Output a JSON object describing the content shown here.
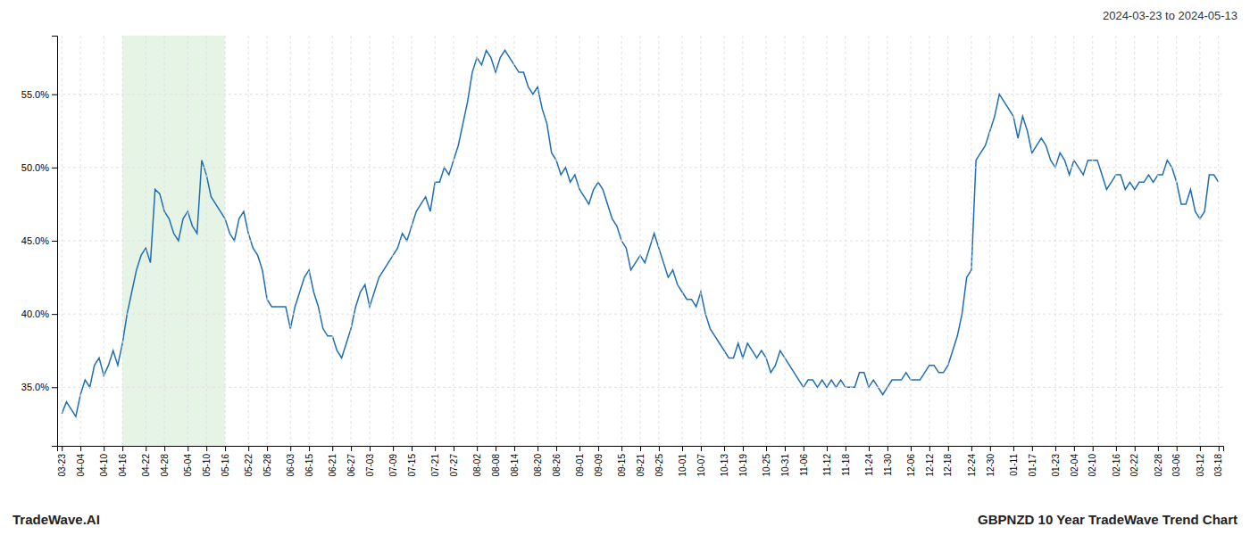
{
  "chart_data": {
    "type": "line",
    "title": "GBPNZD 10 Year TradeWave Trend Chart",
    "subtitle": "2024-03-23 to 2024-05-13",
    "annotations": [
      "TradeWave.AI"
    ],
    "color": "#1f6eb5",
    "grid": true,
    "highlight": {
      "start": "04-16",
      "end": "05-16",
      "color": "#c8e6c8"
    },
    "ylim": [
      31.0,
      59.0
    ],
    "yticks": [
      {
        "value": 35.0,
        "label": "35.0%"
      },
      {
        "value": 40.0,
        "label": "40.0%"
      },
      {
        "value": 45.0,
        "label": "45.0%"
      },
      {
        "value": 50.0,
        "label": "50.0%"
      },
      {
        "value": 55.0,
        "label": "55.0%"
      }
    ],
    "categories": [
      "03-23",
      null,
      null,
      null,
      "04-04",
      null,
      null,
      null,
      null,
      "04-10",
      null,
      null,
      null,
      "04-16",
      null,
      null,
      null,
      null,
      "04-22",
      null,
      null,
      null,
      "04-28",
      null,
      null,
      null,
      null,
      "05-04",
      null,
      null,
      null,
      "05-10",
      null,
      null,
      null,
      "05-16",
      null,
      null,
      null,
      null,
      "05-22",
      null,
      null,
      null,
      "05-28",
      null,
      null,
      null,
      null,
      "06-03",
      null,
      null,
      null,
      "06-15",
      null,
      null,
      null,
      null,
      "06-21",
      null,
      null,
      null,
      "06-27",
      null,
      null,
      null,
      "07-03",
      null,
      null,
      null,
      null,
      "07-09",
      null,
      null,
      null,
      "07-15",
      null,
      null,
      null,
      null,
      "07-21",
      null,
      null,
      null,
      "07-27",
      null,
      null,
      null,
      null,
      "08-02",
      null,
      null,
      null,
      "08-08",
      null,
      null,
      null,
      "08-14",
      null,
      null,
      null,
      null,
      "08-20",
      null,
      null,
      null,
      "08-26",
      null,
      null,
      null,
      null,
      "09-01",
      null,
      null,
      null,
      "09-09",
      null,
      null,
      null,
      null,
      "09-15",
      null,
      null,
      null,
      "09-21",
      null,
      null,
      null,
      "09-25",
      null,
      null,
      null,
      null,
      "10-01",
      null,
      null,
      null,
      "10-07",
      null,
      null,
      null,
      null,
      "10-13",
      null,
      null,
      null,
      "10-19",
      null,
      null,
      null,
      null,
      "10-25",
      null,
      null,
      null,
      "10-31",
      null,
      null,
      null,
      "11-06",
      null,
      null,
      null,
      null,
      "11-12",
      null,
      null,
      null,
      "11-18",
      null,
      null,
      null,
      null,
      "11-24",
      null,
      null,
      null,
      "11-30",
      null,
      null,
      null,
      null,
      "12-06",
      null,
      null,
      null,
      "12-12",
      null,
      null,
      null,
      "12-18",
      null,
      null,
      null,
      null,
      "12-24",
      null,
      null,
      null,
      "12-30",
      null,
      null,
      null,
      null,
      "01-11",
      null,
      null,
      null,
      "01-17",
      null,
      null,
      null,
      null,
      "01-23",
      null,
      null,
      null,
      "02-04",
      null,
      null,
      null,
      "02-10",
      null,
      null,
      null,
      null,
      "02-16",
      null,
      null,
      null,
      "02-22",
      null,
      null,
      null,
      null,
      "02-28",
      null,
      null,
      null,
      "03-06",
      null,
      null,
      null,
      null,
      "03-12",
      null,
      null,
      null,
      "03-18"
    ],
    "values": [
      33.2,
      34.0,
      33.5,
      33.0,
      34.5,
      35.5,
      35.0,
      36.5,
      37.0,
      35.8,
      36.5,
      37.5,
      36.5,
      38.0,
      40.0,
      41.5,
      43.0,
      44.0,
      44.5,
      43.5,
      48.5,
      48.2,
      47.0,
      46.5,
      45.5,
      45.0,
      46.5,
      47.0,
      46.0,
      45.5,
      50.5,
      49.5,
      48.0,
      47.5,
      47.0,
      46.5,
      45.5,
      45.0,
      46.5,
      47.0,
      45.5,
      44.5,
      44.0,
      43.0,
      41.0,
      40.5,
      40.5,
      40.5,
      40.5,
      39.0,
      40.5,
      41.5,
      42.5,
      43.0,
      41.5,
      40.5,
      39.0,
      38.5,
      38.5,
      37.5,
      37.0,
      38.0,
      39.0,
      40.5,
      41.5,
      42.0,
      40.5,
      41.5,
      42.5,
      43.0,
      43.5,
      44.0,
      44.5,
      45.5,
      45.0,
      46.0,
      47.0,
      47.5,
      48.0,
      47.0,
      49.0,
      49.0,
      50.0,
      49.5,
      50.5,
      51.5,
      53.0,
      54.5,
      56.5,
      57.5,
      57.0,
      58.0,
      57.5,
      56.5,
      57.5,
      58.0,
      57.5,
      57.0,
      56.5,
      56.5,
      55.5,
      55.0,
      55.5,
      54.0,
      53.0,
      51.0,
      50.5,
      49.5,
      50.0,
      49.0,
      49.5,
      48.5,
      48.0,
      47.5,
      48.5,
      49.0,
      48.5,
      47.5,
      46.5,
      46.0,
      45.0,
      44.5,
      43.0,
      43.5,
      44.0,
      43.5,
      44.5,
      45.5,
      44.5,
      43.5,
      42.5,
      43.0,
      42.0,
      41.5,
      41.0,
      41.0,
      40.5,
      41.5,
      40.0,
      39.0,
      38.5,
      38.0,
      37.5,
      37.0,
      37.0,
      38.0,
      37.0,
      38.0,
      37.5,
      37.0,
      37.5,
      37.0,
      36.0,
      36.5,
      37.5,
      37.0,
      36.5,
      36.0,
      35.5,
      35.0,
      35.5,
      35.5,
      35.0,
      35.5,
      35.0,
      35.5,
      35.0,
      35.5,
      35.0,
      35.0,
      35.0,
      36.0,
      36.0,
      35.0,
      35.5,
      35.0,
      34.5,
      35.0,
      35.5,
      35.5,
      35.5,
      36.0,
      35.5,
      35.5,
      35.5,
      36.0,
      36.5,
      36.5,
      36.0,
      36.0,
      36.5,
      37.5,
      38.5,
      40.0,
      42.5,
      43.0,
      50.5,
      51.0,
      51.5,
      52.5,
      53.5,
      55.0,
      54.5,
      54.0,
      53.5,
      52.0,
      53.5,
      52.5,
      51.0,
      51.5,
      52.0,
      51.5,
      50.5,
      50.0,
      51.0,
      50.5,
      49.5,
      50.5,
      50.0,
      49.5,
      50.5,
      50.5,
      50.5,
      49.5,
      48.5,
      49.0,
      49.5,
      49.5,
      48.5,
      49.0,
      48.5,
      49.0,
      49.0,
      49.5,
      49.0,
      49.5,
      49.5,
      50.5,
      50.0,
      49.0,
      47.5,
      47.5,
      48.5,
      47.0,
      46.5,
      47.0,
      49.5,
      49.5,
      49.0
    ]
  }
}
